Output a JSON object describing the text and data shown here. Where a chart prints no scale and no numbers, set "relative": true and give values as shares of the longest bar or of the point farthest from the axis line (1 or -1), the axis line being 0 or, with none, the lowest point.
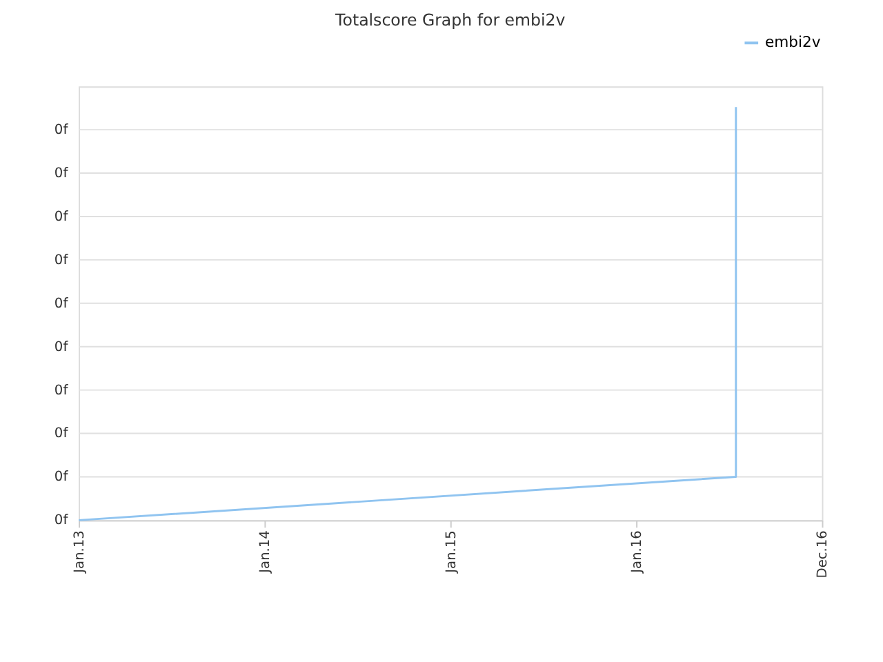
{
  "chart_data": {
    "type": "line",
    "title": "Totalscore Graph for embi2v",
    "relative": true,
    "x": [
      "2013-01-01",
      "2016-07-15",
      "2016-07-15"
    ],
    "series": [
      {
        "name": "embi2v",
        "color": "#90c4f0",
        "values": [
          0,
          0.105,
          1
        ]
      }
    ],
    "xlim": [
      "2013-01-01",
      "2016-12-31"
    ],
    "xticks": [
      {
        "value": "2013-01-01",
        "label": "Jan.13"
      },
      {
        "value": "2014-01-01",
        "label": "Jan.14"
      },
      {
        "value": "2015-01-01",
        "label": "Jan.15"
      },
      {
        "value": "2016-01-01",
        "label": "Jan.16"
      },
      {
        "value": "2016-12-31",
        "label": "Dec.16"
      }
    ],
    "annotations": [
      "0f",
      "0f",
      "0f",
      "0f",
      "0f",
      "0f",
      "0f",
      "0f",
      "0f",
      "0f"
    ],
    "grid": "y",
    "legend": "top right",
    "marker": "none",
    "line_style": "solid"
  }
}
